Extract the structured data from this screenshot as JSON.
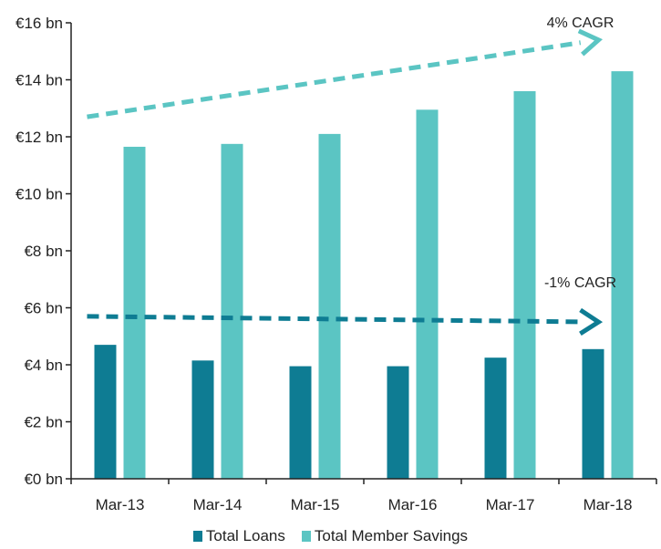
{
  "chart_data": {
    "type": "bar",
    "categories": [
      "Mar-13",
      "Mar-14",
      "Mar-15",
      "Mar-16",
      "Mar-17",
      "Mar-18"
    ],
    "series": [
      {
        "name": "Total Loans",
        "values": [
          4.7,
          4.15,
          3.95,
          3.95,
          4.25,
          4.55
        ],
        "color": "#0E7C93"
      },
      {
        "name": "Total Member Savings",
        "values": [
          11.65,
          11.75,
          12.1,
          12.95,
          13.6,
          14.3
        ],
        "color": "#5BC5C3"
      }
    ],
    "ylim": [
      0,
      16
    ],
    "yticks": [
      0,
      2,
      4,
      6,
      8,
      10,
      12,
      14,
      16
    ],
    "ytick_labels": [
      "€0 bn",
      "€2 bn",
      "€4 bn",
      "€6 bn",
      "€8 bn",
      "€10 bn",
      "€12 bn",
      "€14 bn",
      "€16 bn"
    ],
    "grid": false,
    "legend_position": "bottom",
    "trend_annotations": [
      {
        "label": "4% CAGR",
        "series": "Total Member Savings",
        "from": {
          "x": "Mar-13",
          "y": 12.7
        },
        "to": {
          "x": "Mar-18",
          "y": 15.4
        },
        "color": "#5BC5C3"
      },
      {
        "label": "-1% CAGR",
        "series": "Total Loans",
        "from": {
          "x": "Mar-13",
          "y": 5.7
        },
        "to": {
          "x": "Mar-18",
          "y": 5.5
        },
        "color": "#0E7C93"
      }
    ]
  }
}
